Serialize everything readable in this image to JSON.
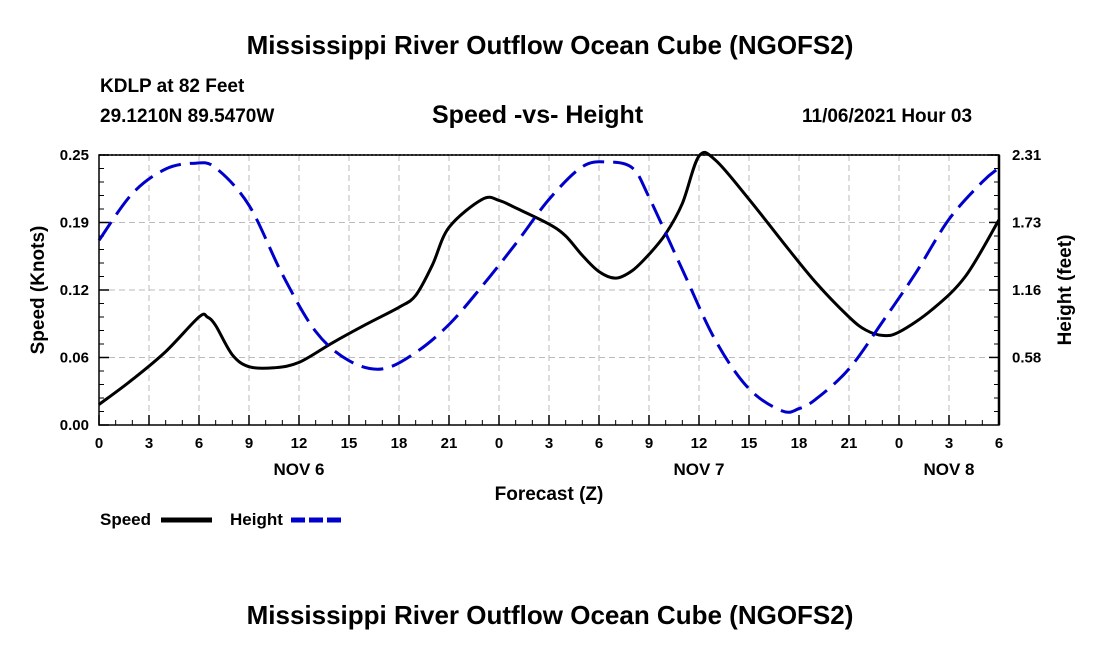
{
  "header": {
    "title": "Mississippi River Outflow Ocean Cube (NGOFS2)",
    "station": "KDLP at 82 Feet",
    "coords": "29.1210N  89.5470W",
    "subtitle": "Speed -vs- Height",
    "datetime": "11/06/2021 Hour 03"
  },
  "footer": {
    "title": "Mississippi River Outflow Ocean Cube (NGOFS2)"
  },
  "chart_data": {
    "type": "line",
    "xlabel": "Forecast (Z)",
    "ylabel": "Speed (Knots)",
    "y2label": "Height (feet)",
    "xlim": [
      0,
      54
    ],
    "ylim": [
      0,
      0.25
    ],
    "y2lim": [
      0,
      2.31
    ],
    "x_ticks": [
      0,
      3,
      6,
      9,
      12,
      15,
      18,
      21,
      24,
      27,
      30,
      33,
      36,
      39,
      42,
      45,
      48,
      51,
      54
    ],
    "x_tick_labels": [
      "0",
      "3",
      "6",
      "9",
      "12",
      "15",
      "18",
      "21",
      "0",
      "3",
      "6",
      "9",
      "12",
      "15",
      "18",
      "21",
      "0",
      "3",
      "6"
    ],
    "day_labels": [
      {
        "x": 12,
        "label": "NOV 6"
      },
      {
        "x": 36,
        "label": "NOV 7"
      },
      {
        "x": 51,
        "label": "NOV 8"
      }
    ],
    "y_ticks": [
      0,
      0.0625,
      0.125,
      0.1875,
      0.25
    ],
    "y_tick_labels": [
      "0.00",
      "0.06",
      "0.12",
      "0.19",
      "0.25"
    ],
    "y2_ticks": [
      0.578,
      1.155,
      1.733,
      2.31
    ],
    "y2_tick_labels": [
      "0.58",
      "1.16",
      "1.73",
      "2.31"
    ],
    "grid": true,
    "legend_position": "bottom-left",
    "series": [
      {
        "name": "Speed",
        "axis": "left",
        "color": "#000000",
        "dash": "solid",
        "x": [
          0,
          2,
          4,
          6,
          6.5,
          7,
          8,
          9,
          10.5,
          12,
          14,
          16,
          18,
          19,
          20,
          21,
          23,
          24,
          25,
          27,
          28,
          29,
          30,
          31,
          32,
          33,
          34,
          35,
          36,
          37,
          39,
          41,
          43,
          45,
          46,
          47,
          48,
          50,
          52,
          54
        ],
        "values": [
          0.019,
          0.042,
          0.068,
          0.1,
          0.1,
          0.092,
          0.065,
          0.054,
          0.053,
          0.058,
          0.076,
          0.093,
          0.109,
          0.12,
          0.148,
          0.183,
          0.209,
          0.208,
          0.201,
          0.186,
          0.175,
          0.157,
          0.142,
          0.136,
          0.143,
          0.158,
          0.177,
          0.205,
          0.249,
          0.245,
          0.209,
          0.17,
          0.132,
          0.1,
          0.088,
          0.083,
          0.086,
          0.107,
          0.138,
          0.19
        ]
      },
      {
        "name": "Height",
        "axis": "right",
        "color": "#0000cc",
        "dash": "dashed",
        "x": [
          0,
          2,
          4,
          5.8,
          7,
          9,
          11,
          13,
          15,
          17,
          19,
          21,
          23,
          25,
          27,
          29,
          30.5,
          32,
          33,
          35,
          37,
          39,
          41,
          42,
          43,
          45,
          47,
          49,
          51,
          53,
          54
        ],
        "values": [
          1.58,
          1.98,
          2.19,
          2.24,
          2.2,
          1.88,
          1.29,
          0.8,
          0.55,
          0.48,
          0.62,
          0.86,
          1.19,
          1.55,
          1.93,
          2.21,
          2.25,
          2.2,
          1.95,
          1.33,
          0.72,
          0.31,
          0.12,
          0.14,
          0.22,
          0.48,
          0.88,
          1.3,
          1.76,
          2.08,
          2.2
        ]
      }
    ]
  }
}
